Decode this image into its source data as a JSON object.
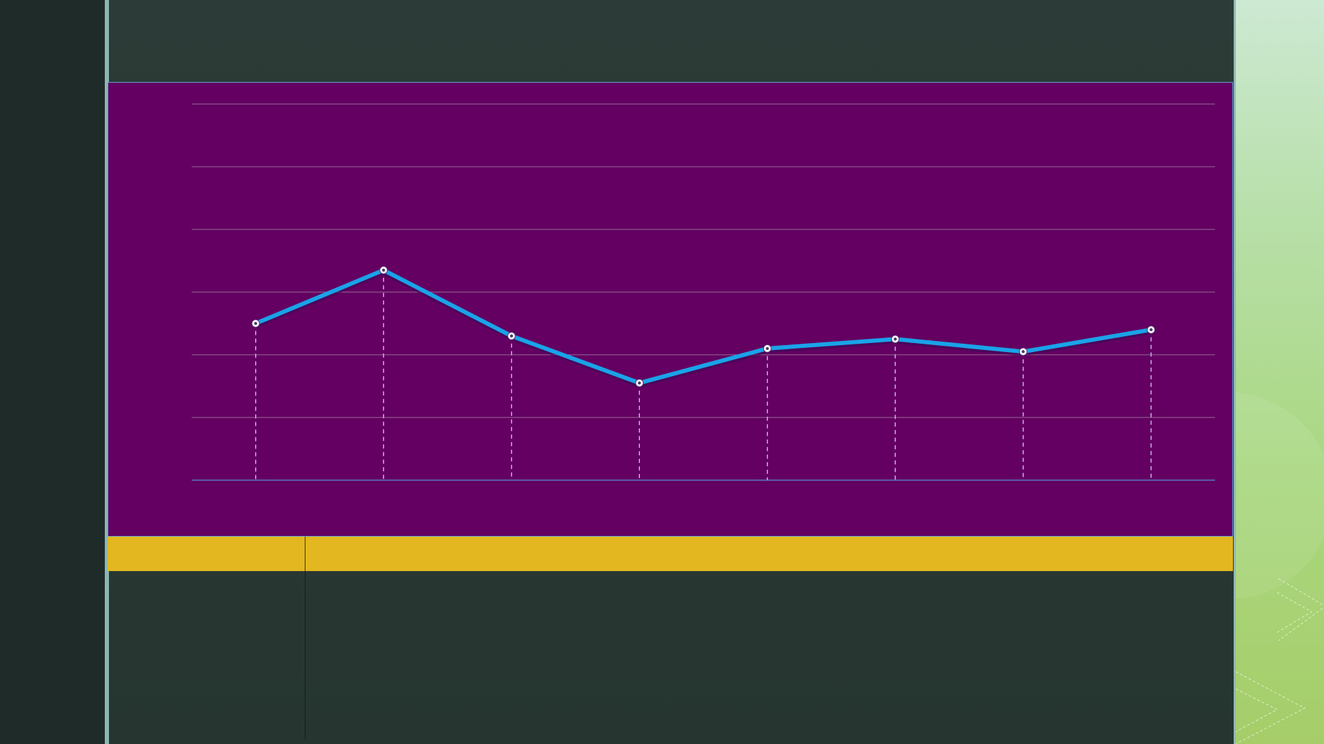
{
  "slide": {
    "colors": {
      "background": "#2b3a36",
      "left_band": "#1f2b28",
      "accent_line": "#8bb8b2",
      "chart_background": "#630061",
      "chart_border": "#5fa4d6",
      "table_header": "#e2b71f",
      "right_panel_top": "#cde9d3",
      "right_panel_bottom": "#a6cd69"
    },
    "table": {
      "header_cells": [
        "",
        ""
      ],
      "body_cells": [
        "",
        ""
      ]
    }
  },
  "chart_data": {
    "type": "line",
    "title": "",
    "xlabel": "",
    "ylabel": "",
    "categories": [
      "",
      "",
      "",
      "",
      "",
      "",
      "",
      ""
    ],
    "series": [
      {
        "values": [
          2.5,
          3.35,
          2.3,
          1.55,
          2.1,
          2.25,
          2.05,
          2.4
        ],
        "color": "#1aa3e8",
        "marker_fill": "#ffffff"
      }
    ],
    "ylim": [
      0,
      6
    ],
    "y_gridlines": [
      0,
      1,
      2,
      3,
      4,
      5,
      6
    ],
    "grid": true,
    "drop_lines": true,
    "legend": "none",
    "colors": {
      "gridline": "#9a6c9a",
      "axis": "#5b78c8",
      "drop_line": "#c9b3e6"
    }
  }
}
